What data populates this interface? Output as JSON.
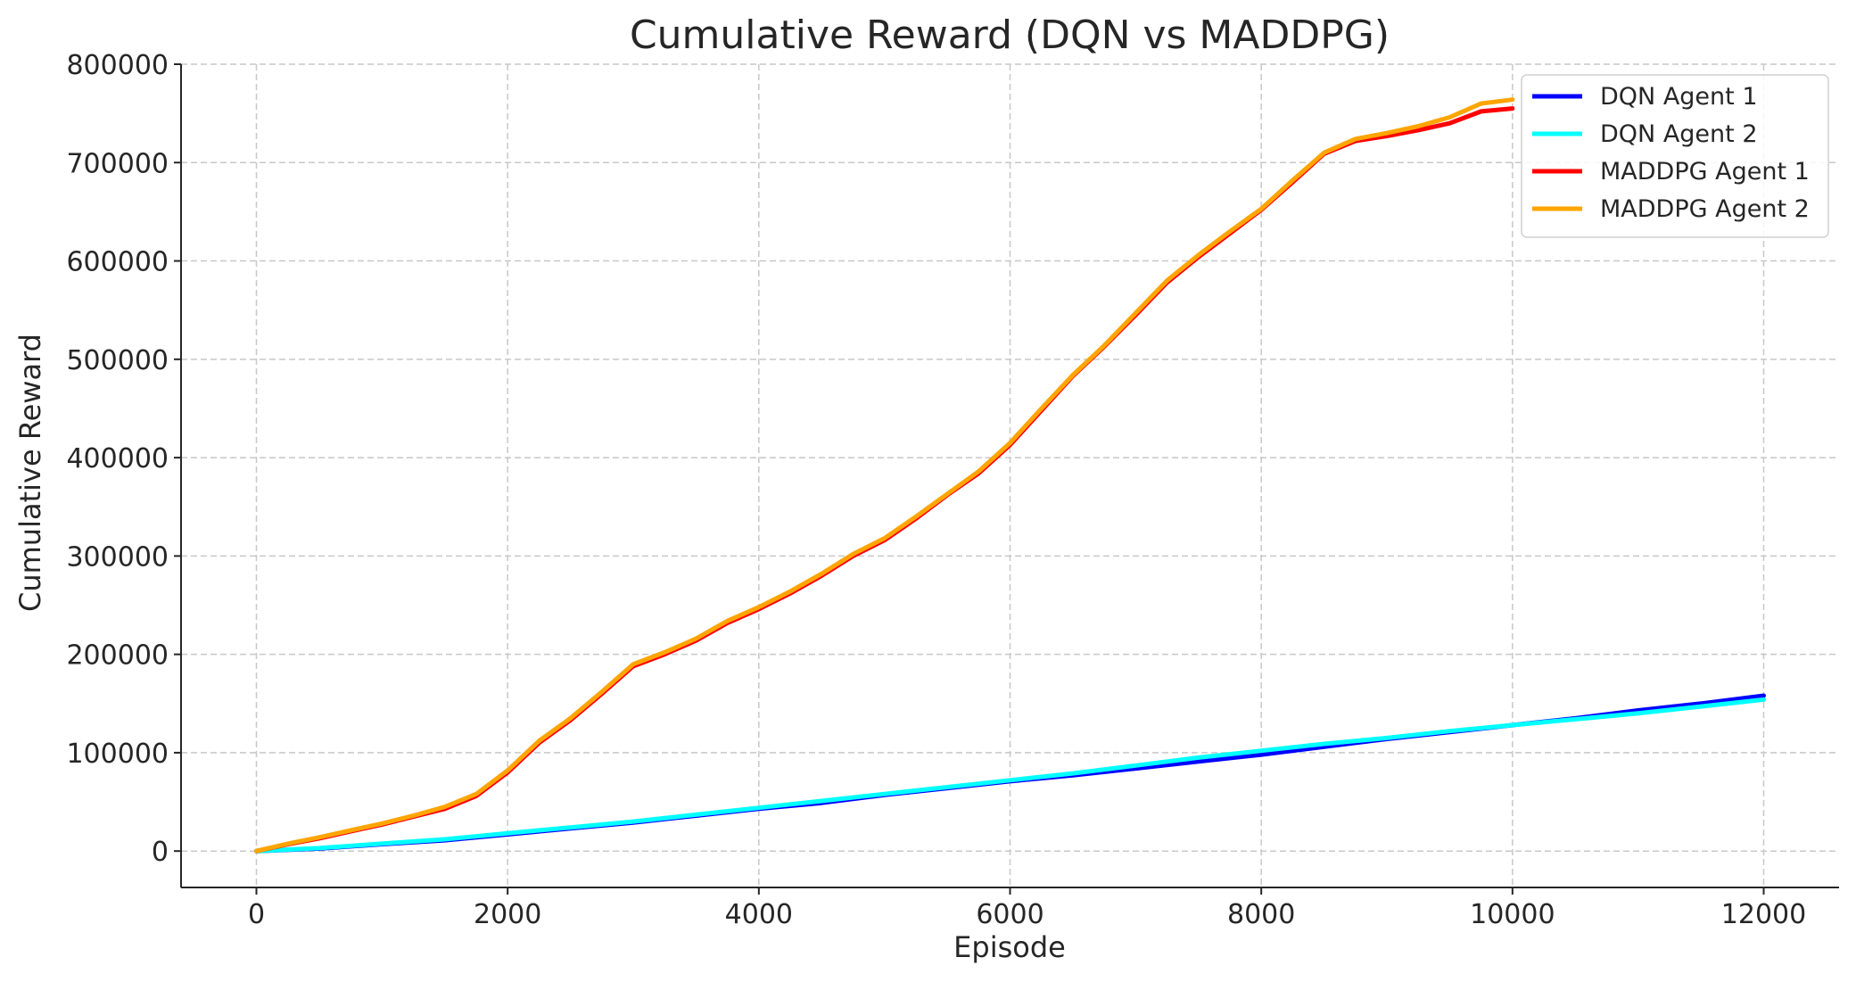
{
  "chart_data": {
    "type": "line",
    "title": "Cumulative Reward (DQN vs MADDPG)",
    "xlabel": "Episode",
    "ylabel": "Cumulative Reward",
    "xlim": [
      -600,
      12600
    ],
    "ylim": [
      -37000,
      800000
    ],
    "xticks": [
      0,
      2000,
      4000,
      6000,
      8000,
      10000,
      12000
    ],
    "yticks": [
      0,
      100000,
      200000,
      300000,
      400000,
      500000,
      600000,
      700000,
      800000
    ],
    "grid": true,
    "legend_position": "top-right",
    "series": [
      {
        "name": "DQN Agent 1",
        "color": "#0000ff",
        "x": [
          0,
          500,
          1000,
          1500,
          2000,
          2500,
          3000,
          3500,
          4000,
          4500,
          5000,
          5500,
          6000,
          6500,
          7000,
          7500,
          8000,
          8500,
          9000,
          9500,
          10000,
          10500,
          11000,
          11500,
          12000
        ],
        "y": [
          0,
          2500,
          7000,
          11000,
          17000,
          23000,
          29000,
          36000,
          43000,
          49000,
          57000,
          64000,
          71000,
          77000,
          84000,
          91000,
          98000,
          106000,
          114000,
          121000,
          128000,
          135000,
          143000,
          150000,
          158000
        ]
      },
      {
        "name": "DQN Agent 2",
        "color": "#00ffff",
        "x": [
          0,
          500,
          1000,
          1500,
          2000,
          2500,
          3000,
          3500,
          4000,
          4500,
          5000,
          5500,
          6000,
          6500,
          7000,
          7500,
          8000,
          8500,
          9000,
          9500,
          10000,
          10500,
          11000,
          11500,
          12000
        ],
        "y": [
          0,
          3000,
          7500,
          12000,
          18000,
          24000,
          30000,
          37000,
          44000,
          51000,
          58000,
          65000,
          72000,
          79000,
          87000,
          95000,
          102000,
          109000,
          115000,
          122000,
          128000,
          134000,
          140000,
          147000,
          154000
        ]
      },
      {
        "name": "MADDPG Agent 1",
        "color": "#ff0000",
        "x": [
          0,
          250,
          500,
          750,
          1000,
          1250,
          1500,
          1750,
          2000,
          2250,
          2500,
          2750,
          3000,
          3250,
          3500,
          3750,
          4000,
          4250,
          4500,
          4750,
          5000,
          5250,
          5500,
          5750,
          6000,
          6250,
          6500,
          6750,
          7000,
          7250,
          7500,
          7750,
          8000,
          8250,
          8500,
          8750,
          9000,
          9250,
          9500,
          9750,
          10000
        ],
        "y": [
          0,
          7000,
          13000,
          20000,
          27000,
          35000,
          43000,
          56000,
          80000,
          110000,
          133000,
          160000,
          188000,
          200000,
          214000,
          232000,
          246000,
          262000,
          280000,
          300000,
          316000,
          338000,
          362000,
          384000,
          413000,
          448000,
          483000,
          513000,
          545000,
          578000,
          604000,
          628000,
          652000,
          680000,
          709000,
          722000,
          727000,
          733000,
          740000,
          752000,
          755000
        ]
      },
      {
        "name": "MADDPG Agent 2",
        "color": "#ffa500",
        "x": [
          0,
          250,
          500,
          750,
          1000,
          1250,
          1500,
          1750,
          2000,
          2250,
          2500,
          2750,
          3000,
          3250,
          3500,
          3750,
          4000,
          4250,
          4500,
          4750,
          5000,
          5250,
          5500,
          5750,
          6000,
          6250,
          6500,
          6750,
          7000,
          7250,
          7500,
          7750,
          8000,
          8250,
          8500,
          8750,
          9000,
          9250,
          9500,
          9750,
          10000
        ],
        "y": [
          0,
          7500,
          14000,
          21000,
          28000,
          36000,
          45000,
          58000,
          82000,
          112000,
          135000,
          162000,
          190000,
          202000,
          216000,
          234000,
          248000,
          264000,
          282000,
          302000,
          318000,
          340000,
          363000,
          386000,
          415000,
          450000,
          484000,
          514000,
          547000,
          580000,
          606000,
          630000,
          653000,
          682000,
          710000,
          724000,
          730000,
          737000,
          746000,
          760000,
          764000
        ]
      }
    ]
  }
}
